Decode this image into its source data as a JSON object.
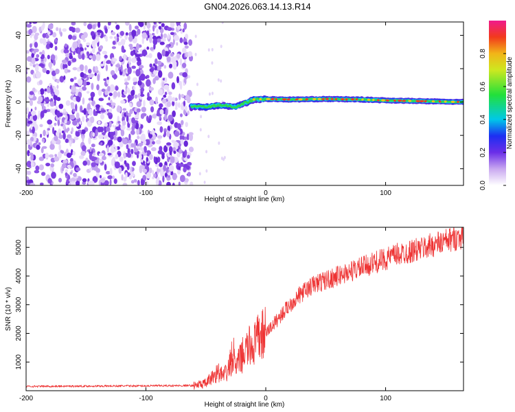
{
  "title": "GN04.2026.063.14.13.R14",
  "colors": {
    "signal": "#ee3333",
    "noise": "#8a2be2",
    "axis": "#000000"
  },
  "chart_data": [
    {
      "type": "heatmap",
      "title": "GN04.2026.063.14.13.R14",
      "xlabel": "Height of straight line (km)",
      "ylabel": "Frequency (Hz)",
      "xlim": [
        -200,
        165
      ],
      "ylim": [
        -50,
        48
      ],
      "x_ticks": [
        -200,
        -100,
        0,
        100
      ],
      "x_tick_labels": [
        "-200",
        "-100",
        "0",
        "100"
      ],
      "y_ticks": [
        -40,
        -20,
        0,
        20,
        40
      ],
      "y_tick_labels": [
        "-40",
        "-20",
        "0",
        "20",
        "40"
      ],
      "noise_region_x": [
        -200,
        -62
      ],
      "signal_start_x": -62,
      "signal_track": [
        [
          -62,
          -2.5
        ],
        [
          -50,
          -3
        ],
        [
          -40,
          -2
        ],
        [
          -30,
          -2.5
        ],
        [
          -25,
          -3
        ],
        [
          -20,
          -1
        ],
        [
          -15,
          0
        ],
        [
          -10,
          1.5
        ],
        [
          0,
          1.8
        ],
        [
          20,
          1.5
        ],
        [
          50,
          1.8
        ],
        [
          80,
          1.5
        ],
        [
          100,
          1.0
        ],
        [
          130,
          0.5
        ],
        [
          165,
          0
        ]
      ],
      "colorbar": {
        "label": "Normalized spectral amplitude",
        "ticks": [
          "0.0",
          "0.2",
          "0.4",
          "0.6",
          "0.8"
        ],
        "range": [
          0,
          1
        ]
      }
    },
    {
      "type": "line",
      "xlabel": "Height of straight line (km)",
      "ylabel": "SNR (10 * v/v)",
      "xlim": [
        -200,
        165
      ],
      "ylim": [
        0,
        5700
      ],
      "x_ticks": [
        -200,
        -100,
        0,
        100
      ],
      "x_tick_labels": [
        "-200",
        "-100",
        "0",
        "100"
      ],
      "y_ticks": [
        1000,
        2000,
        3000,
        4000,
        5000
      ],
      "y_tick_labels": [
        "1000",
        "2000",
        "3000",
        "4000",
        "5000"
      ],
      "series": [
        {
          "name": "SNR",
          "x": [
            -200,
            -150,
            -100,
            -60,
            -50,
            -45,
            -40,
            -35,
            -30,
            -27,
            -25,
            -20,
            -15,
            -10,
            -5,
            0,
            10,
            20,
            30,
            40,
            50,
            60,
            70,
            80,
            90,
            100,
            110,
            120,
            130,
            140,
            150,
            160,
            165
          ],
          "y": [
            150,
            160,
            170,
            180,
            250,
            450,
            650,
            500,
            800,
            1300,
            800,
            1200,
            1500,
            1600,
            1900,
            2000,
            2500,
            3000,
            3400,
            3700,
            3850,
            4000,
            4150,
            4300,
            4450,
            4600,
            4750,
            4850,
            4950,
            5100,
            5200,
            5350,
            5400
          ]
        }
      ]
    }
  ]
}
